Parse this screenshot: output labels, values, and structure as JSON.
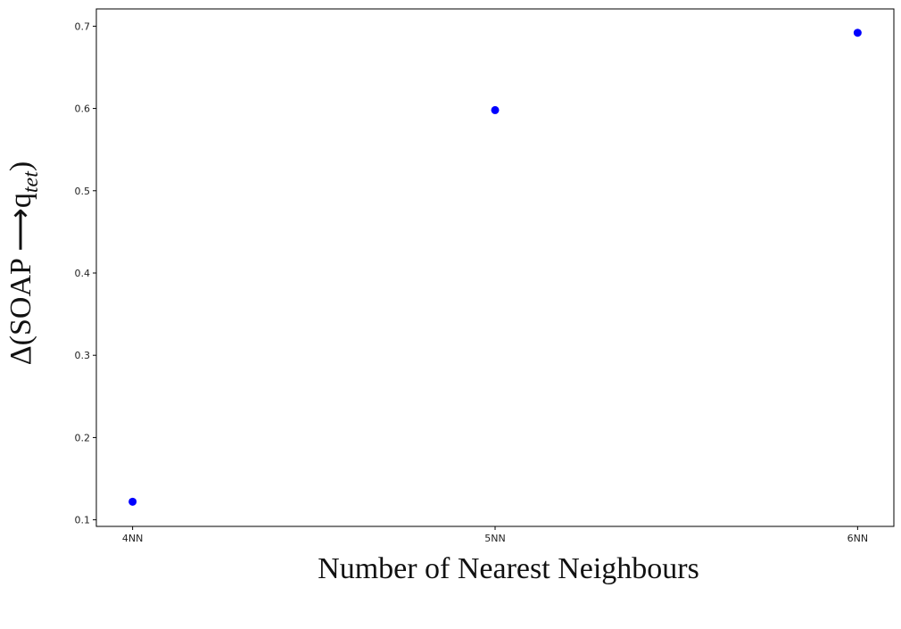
{
  "chart_data": {
    "type": "scatter",
    "xlabel": "Number of Nearest Neighbours",
    "ylabel": {
      "main": "Δ(SOAP ⟶q",
      "subscript": "tet",
      "close": ")"
    },
    "categories": [
      "4NN",
      "5NN",
      "6NN"
    ],
    "values": [
      0.122,
      0.598,
      0.692
    ],
    "color": "#0000ff",
    "ylim": [
      0.092,
      0.721
    ],
    "yticks": [
      0.1,
      0.2,
      0.3,
      0.4,
      0.5,
      0.6,
      0.7
    ],
    "grid": false
  }
}
